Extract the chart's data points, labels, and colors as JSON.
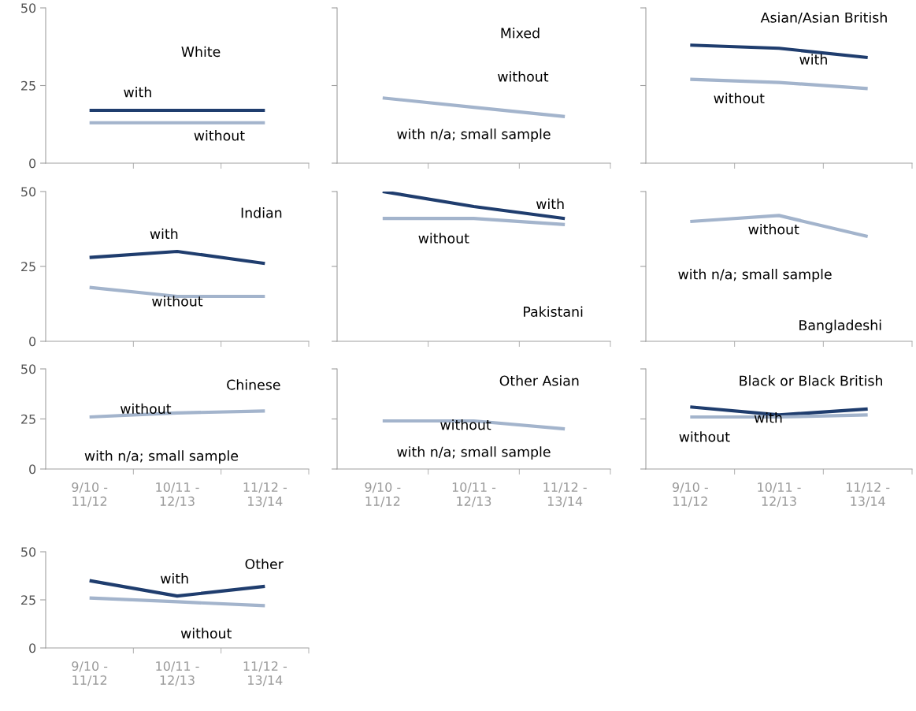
{
  "chart_data": [
    {
      "type": "line",
      "title": "White",
      "categories": [
        "9/10 -\n11/12",
        "10/11 -\n12/13",
        "11/12 -\n13/14"
      ],
      "ylim": [
        0,
        50
      ],
      "yticks": [
        0,
        25,
        50
      ],
      "tick_labels": "y",
      "series": [
        {
          "name": "with",
          "color": "#1f3d6e",
          "values": [
            17,
            17,
            17
          ]
        },
        {
          "name": "without",
          "color": "#a3b4cc",
          "values": [
            13,
            13,
            13
          ]
        }
      ]
    },
    {
      "type": "line",
      "title": "Mixed",
      "categories": [
        "9/10 -\n11/12",
        "10/11 -\n12/13",
        "11/12 -\n13/14"
      ],
      "ylim": [
        0,
        50
      ],
      "yticks": [
        0,
        25,
        50
      ],
      "tick_labels": false,
      "annotations": [
        "with n/a; small sample"
      ],
      "series": [
        {
          "name": "without",
          "color": "#a3b4cc",
          "values": [
            21,
            18,
            15
          ]
        }
      ]
    },
    {
      "type": "line",
      "title": "Asian/Asian British",
      "categories": [
        "9/10 -\n11/12",
        "10/11 -\n12/13",
        "11/12 -\n13/14"
      ],
      "ylim": [
        0,
        50
      ],
      "yticks": [
        0,
        25,
        50
      ],
      "tick_labels": false,
      "series": [
        {
          "name": "with",
          "color": "#1f3d6e",
          "values": [
            38,
            37,
            34
          ]
        },
        {
          "name": "without",
          "color": "#a3b4cc",
          "values": [
            27,
            26,
            24
          ]
        }
      ]
    },
    {
      "type": "line",
      "title": "Indian",
      "categories": [
        "9/10 -\n11/12",
        "10/11 -\n12/13",
        "11/12 -\n13/14"
      ],
      "ylim": [
        0,
        50
      ],
      "yticks": [
        0,
        25,
        50
      ],
      "tick_labels": "y",
      "series": [
        {
          "name": "with",
          "color": "#1f3d6e",
          "values": [
            28,
            30,
            26
          ]
        },
        {
          "name": "without",
          "color": "#a3b4cc",
          "values": [
            18,
            15,
            15
          ]
        }
      ]
    },
    {
      "type": "line",
      "title": "Pakistani",
      "categories": [
        "9/10 -\n11/12",
        "10/11 -\n12/13",
        "11/12 -\n13/14"
      ],
      "ylim": [
        0,
        50
      ],
      "yticks": [
        0,
        25,
        50
      ],
      "tick_labels": false,
      "series": [
        {
          "name": "with",
          "color": "#1f3d6e",
          "values": [
            50,
            45,
            41
          ]
        },
        {
          "name": "without",
          "color": "#a3b4cc",
          "values": [
            41,
            41,
            39
          ]
        }
      ]
    },
    {
      "type": "line",
      "title": "Bangladeshi",
      "categories": [
        "9/10 -\n11/12",
        "10/11 -\n12/13",
        "11/12 -\n13/14"
      ],
      "ylim": [
        0,
        50
      ],
      "yticks": [
        0,
        25,
        50
      ],
      "tick_labels": false,
      "annotations": [
        "with n/a; small sample"
      ],
      "series": [
        {
          "name": "without",
          "color": "#a3b4cc",
          "values": [
            40,
            42,
            35
          ]
        }
      ]
    },
    {
      "type": "line",
      "title": "Chinese",
      "categories": [
        "9/10 -\n11/12",
        "10/11 -\n12/13",
        "11/12 -\n13/14"
      ],
      "ylim": [
        0,
        50
      ],
      "yticks": [
        0,
        25,
        50
      ],
      "annotations": [
        "with n/a; small sample"
      ],
      "series": [
        {
          "name": "without",
          "color": "#a3b4cc",
          "values": [
            26,
            28,
            29
          ]
        }
      ]
    },
    {
      "type": "line",
      "title": "Other Asian",
      "categories": [
        "9/10 -\n11/12",
        "10/11 -\n12/13",
        "11/12 -\n13/14"
      ],
      "ylim": [
        0,
        50
      ],
      "yticks": [
        0,
        25,
        50
      ],
      "tick_labels": "x",
      "annotations": [
        "with n/a; small sample"
      ],
      "series": [
        {
          "name": "without",
          "color": "#a3b4cc",
          "values": [
            24,
            24,
            20
          ]
        }
      ]
    },
    {
      "type": "line",
      "title": "Black or Black British",
      "categories": [
        "9/10 -\n11/12",
        "10/11 -\n12/13",
        "11/12 -\n13/14"
      ],
      "ylim": [
        0,
        50
      ],
      "yticks": [
        0,
        25,
        50
      ],
      "tick_labels": "x",
      "series": [
        {
          "name": "with",
          "color": "#1f3d6e",
          "values": [
            31,
            27,
            30
          ]
        },
        {
          "name": "without",
          "color": "#a3b4cc",
          "values": [
            26,
            26,
            27
          ]
        }
      ]
    },
    {
      "type": "line",
      "title": "Other",
      "categories": [
        "9/10 -\n11/12",
        "10/11 -\n12/13",
        "11/12 -\n13/14"
      ],
      "ylim": [
        0,
        50
      ],
      "yticks": [
        0,
        25,
        50
      ],
      "series": [
        {
          "name": "with",
          "color": "#1f3d6e",
          "values": [
            35,
            27,
            32
          ]
        },
        {
          "name": "without",
          "color": "#a3b4cc",
          "values": [
            26,
            24,
            22
          ]
        }
      ]
    }
  ]
}
